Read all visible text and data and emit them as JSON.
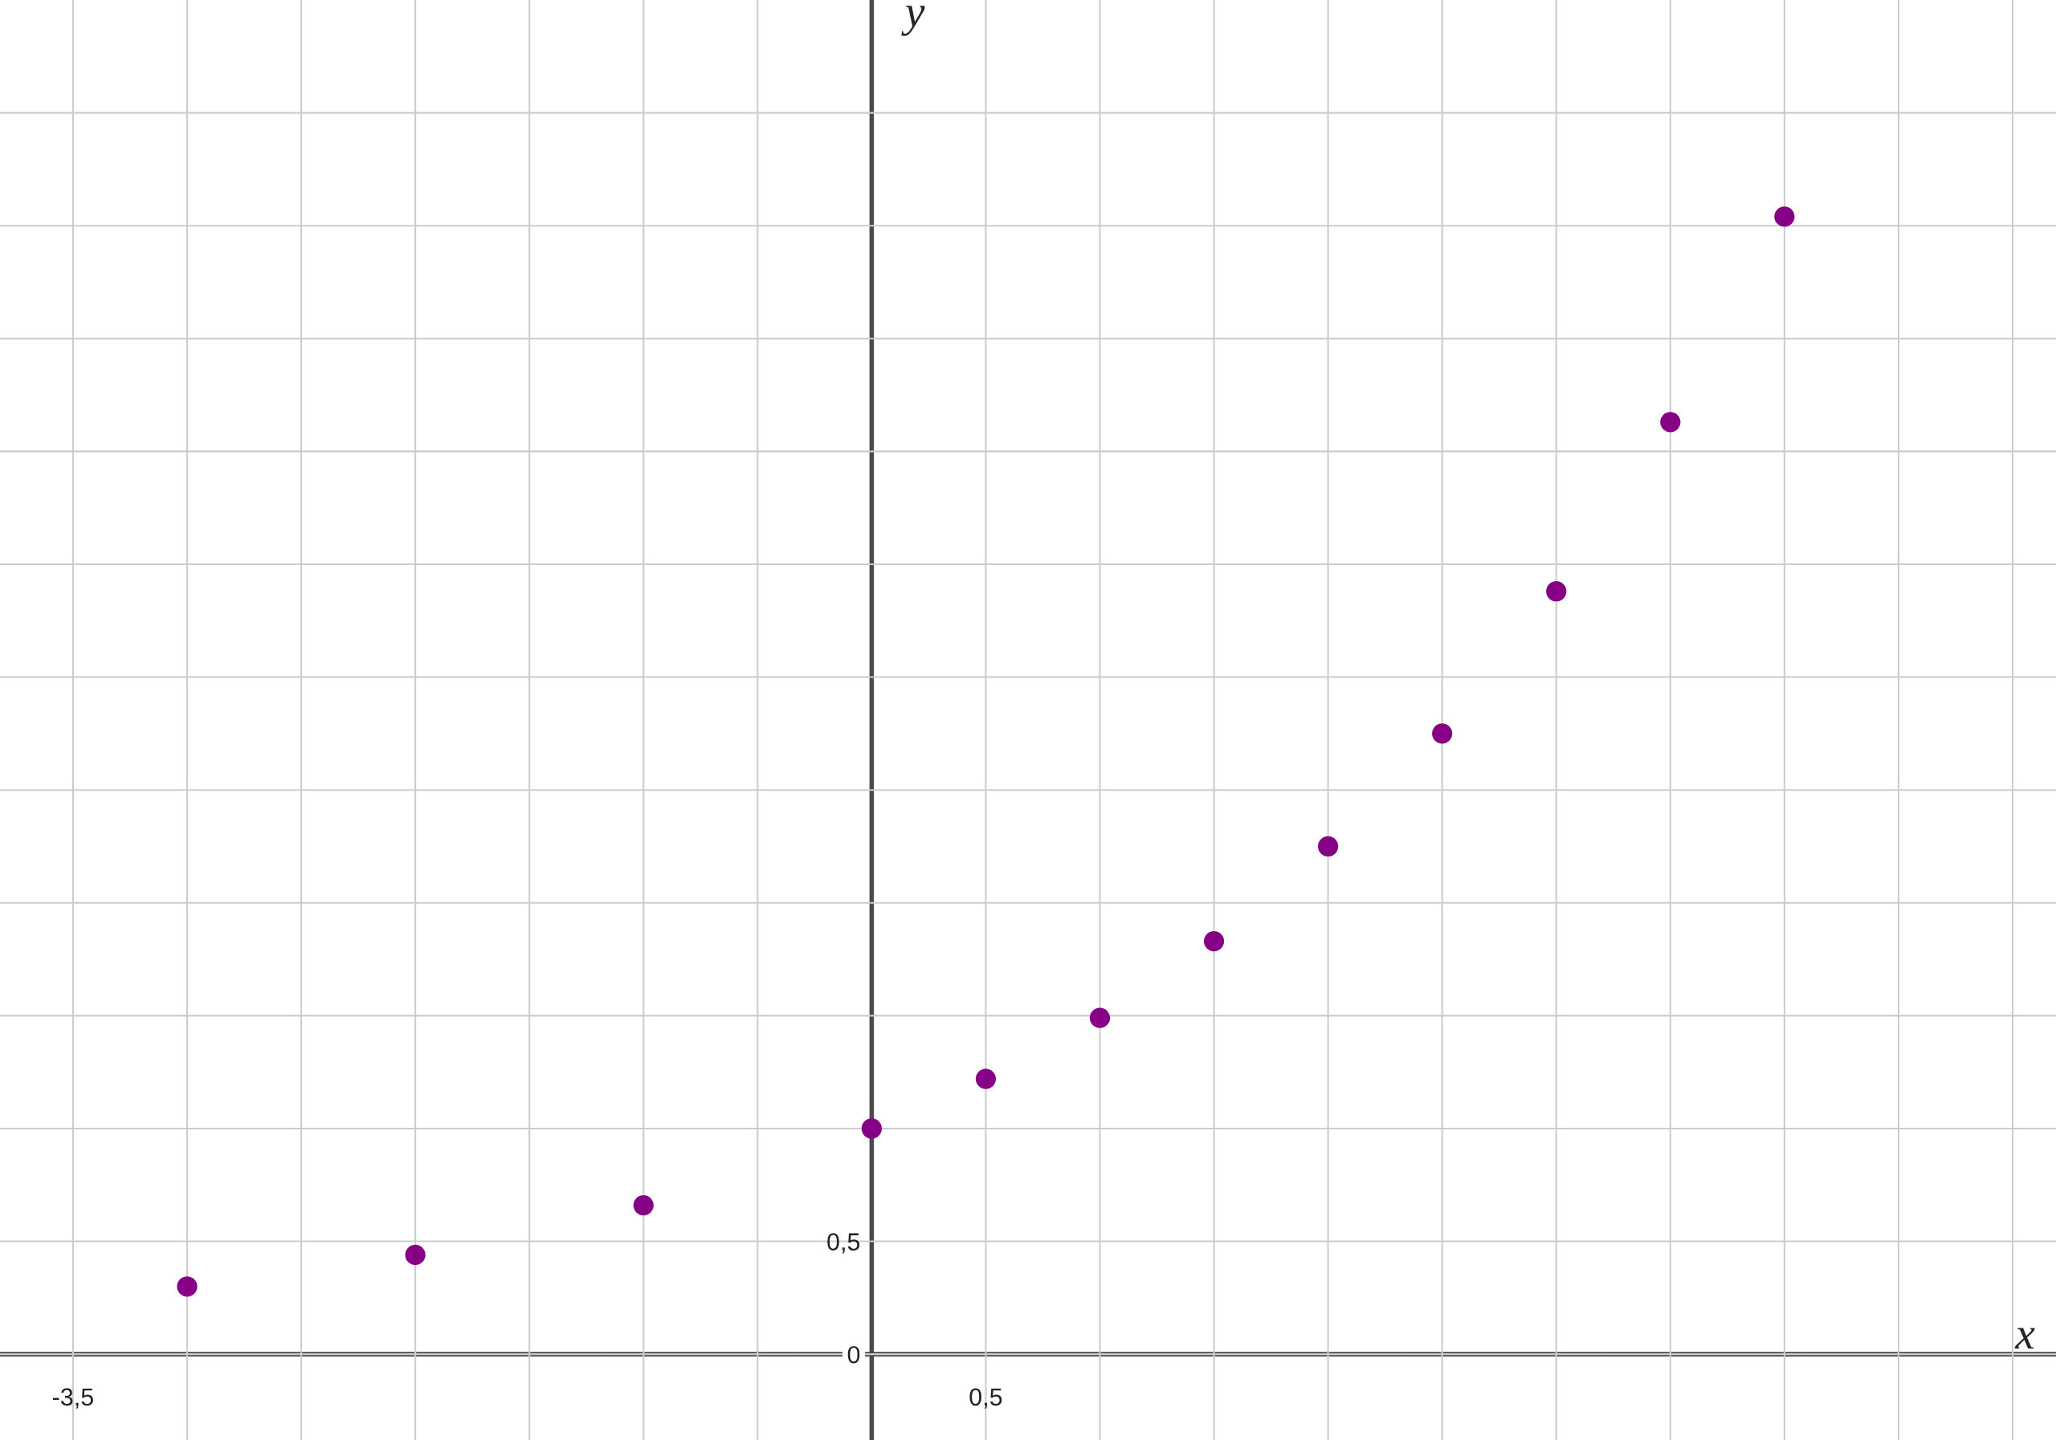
{
  "chart_data": {
    "type": "scatter",
    "xlabel": "x",
    "ylabel": "y",
    "x": [
      -3,
      -2,
      -1,
      0,
      0.5,
      1,
      1.5,
      2,
      2.5,
      3,
      3.5,
      4
    ],
    "series": [
      {
        "color": "#850085",
        "values": [
          0.3,
          0.44,
          0.66,
          1.0,
          1.22,
          1.49,
          1.83,
          2.25,
          2.75,
          3.38,
          4.13,
          5.04
        ]
      }
    ],
    "xlim": [
      -3.82,
      5.19
    ],
    "ylim": [
      -0.38,
      6.0
    ],
    "xticks": [
      {
        "value": -3.5,
        "label": "-3,5"
      },
      {
        "value": -3,
        "label": null
      },
      {
        "value": -2.5,
        "label": null
      },
      {
        "value": -2,
        "label": null
      },
      {
        "value": -1.5,
        "label": null
      },
      {
        "value": -1,
        "label": null
      },
      {
        "value": -0.5,
        "label": null
      },
      {
        "value": 0,
        "label": null
      },
      {
        "value": 0.5,
        "label": "0,5"
      },
      {
        "value": 1,
        "label": null
      },
      {
        "value": 1.5,
        "label": null
      },
      {
        "value": 2,
        "label": null
      },
      {
        "value": 2.5,
        "label": null
      },
      {
        "value": 3,
        "label": null
      },
      {
        "value": 3.5,
        "label": null
      },
      {
        "value": 4,
        "label": null
      },
      {
        "value": 4.5,
        "label": null
      },
      {
        "value": 5,
        "label": null
      }
    ],
    "yticks": [
      {
        "value": 0,
        "label": "0"
      },
      {
        "value": 0.5,
        "label": "0,5"
      },
      {
        "value": 1,
        "label": null
      },
      {
        "value": 1.5,
        "label": null
      },
      {
        "value": 2,
        "label": null
      },
      {
        "value": 2.5,
        "label": null
      },
      {
        "value": 3,
        "label": null
      },
      {
        "value": 3.5,
        "label": null
      },
      {
        "value": 4,
        "label": null
      },
      {
        "value": 4.5,
        "label": null
      },
      {
        "value": 5,
        "label": null
      },
      {
        "value": 5.5,
        "label": null
      }
    ],
    "grid": true,
    "marker": "circle"
  }
}
